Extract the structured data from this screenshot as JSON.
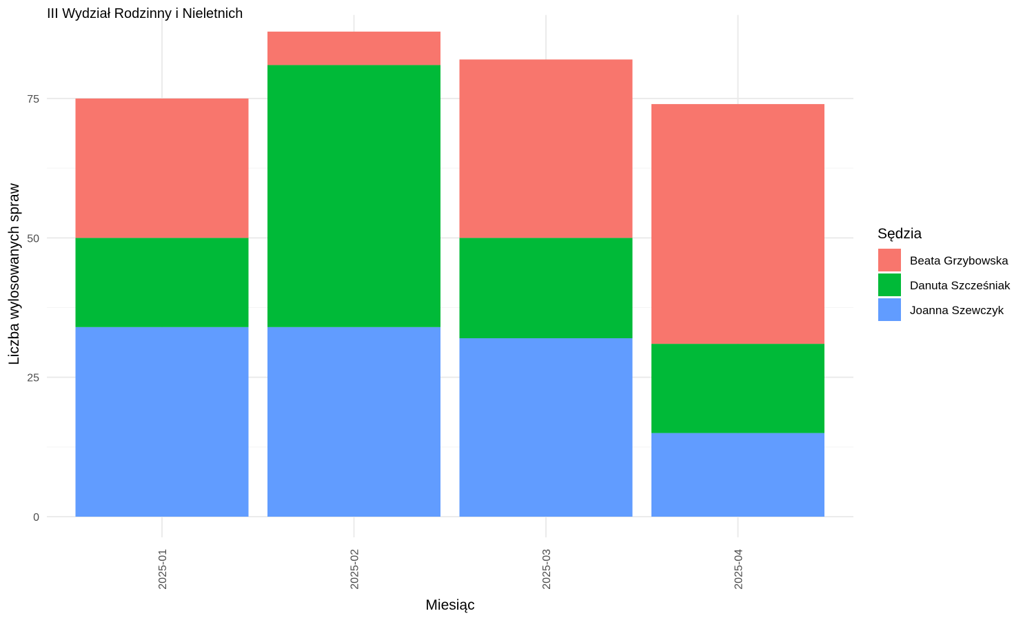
{
  "chart_data": {
    "type": "bar",
    "stacked": true,
    "title": "III Wydział Rodzinny i Nieletnich",
    "xlabel": "Miesiąc",
    "ylabel": "Liczba wylosowanych spraw",
    "categories": [
      "2025-01",
      "2025-02",
      "2025-03",
      "2025-04"
    ],
    "ylim": [
      0,
      90
    ],
    "yticks": [
      "0",
      "25",
      "50",
      "75"
    ],
    "legend_title": "Sędzia",
    "legend_position": "right",
    "grid": true,
    "series": [
      {
        "name": "Beata Grzybowska",
        "color": "#F8766D",
        "values": [
          25,
          6,
          32,
          43
        ]
      },
      {
        "name": "Danuta Szcześniak",
        "color": "#00BA38",
        "values": [
          16,
          47,
          18,
          16
        ]
      },
      {
        "name": "Joanna Szewczyk",
        "color": "#619CFF",
        "values": [
          34,
          34,
          32,
          15
        ]
      }
    ]
  }
}
